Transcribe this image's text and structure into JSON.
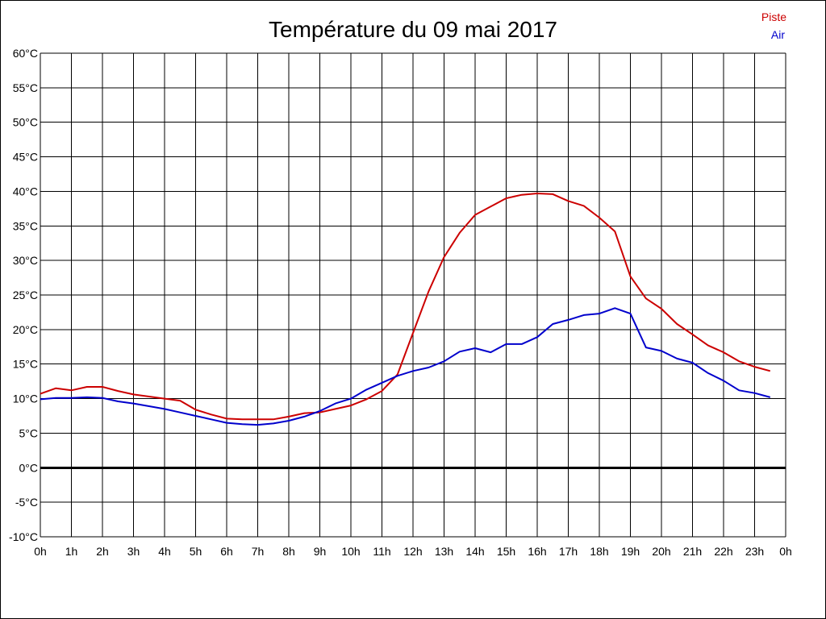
{
  "chart_data": {
    "type": "line",
    "title": "Température du 09 mai 2017",
    "xlabel": "",
    "ylabel": "",
    "x_ticks": [
      "0h",
      "1h",
      "2h",
      "3h",
      "4h",
      "5h",
      "6h",
      "7h",
      "8h",
      "9h",
      "10h",
      "11h",
      "12h",
      "13h",
      "14h",
      "15h",
      "16h",
      "17h",
      "18h",
      "19h",
      "20h",
      "21h",
      "22h",
      "23h",
      "0h"
    ],
    "y_ticks": [
      "60°C",
      "55°C",
      "50°C",
      "45°C",
      "40°C",
      "35°C",
      "30°C",
      "25°C",
      "20°C",
      "15°C",
      "10°C",
      "5°C",
      "0°C",
      "-5°C",
      "-10°C"
    ],
    "xlim": [
      0,
      24
    ],
    "ylim": [
      -10,
      60
    ],
    "grid": true,
    "legend_position": "top-right",
    "series": [
      {
        "name": "Piste",
        "color": "#cc0000",
        "x": [
          0,
          0.5,
          1,
          1.5,
          2,
          2.5,
          3,
          3.5,
          4,
          4.5,
          5,
          5.5,
          6,
          6.5,
          7,
          7.5,
          8,
          8.5,
          9,
          9.5,
          10,
          10.5,
          11,
          11.5,
          12,
          12.5,
          13,
          13.5,
          14,
          14.5,
          15,
          15.5,
          16,
          16.5,
          17,
          17.5,
          18,
          18.5,
          19,
          19.5,
          20,
          20.5,
          21,
          21.5,
          22,
          22.5,
          23,
          23.5
        ],
        "values": [
          10.7,
          11.5,
          11.2,
          11.7,
          11.7,
          11.1,
          10.6,
          10.3,
          10.0,
          9.7,
          8.4,
          7.7,
          7.1,
          7.0,
          7.0,
          7.0,
          7.4,
          7.9,
          8.0,
          8.5,
          9.0,
          9.9,
          11.1,
          13.5,
          19.5,
          25.5,
          30.5,
          34.0,
          36.6,
          37.8,
          39.0,
          39.5,
          39.7,
          39.6,
          38.6,
          37.9,
          36.2,
          34.2,
          27.7,
          24.5,
          23.0,
          20.8,
          19.3,
          17.7,
          16.7,
          15.4,
          14.6,
          14.0
        ]
      },
      {
        "name": "Air",
        "color": "#0000cc",
        "x": [
          0,
          0.5,
          1,
          1.5,
          2,
          2.5,
          3,
          3.5,
          4,
          4.5,
          5,
          5.5,
          6,
          6.5,
          7,
          7.5,
          8,
          8.5,
          9,
          9.5,
          10,
          10.5,
          11,
          11.5,
          12,
          12.5,
          13,
          13.5,
          14,
          14.5,
          15,
          15.5,
          16,
          16.5,
          17,
          17.5,
          18,
          18.5,
          19,
          19.5,
          20,
          20.5,
          21,
          21.5,
          22,
          22.5,
          23,
          23.5
        ],
        "values": [
          9.9,
          10.1,
          10.1,
          10.2,
          10.1,
          9.6,
          9.3,
          8.9,
          8.5,
          8.0,
          7.5,
          7.0,
          6.5,
          6.3,
          6.2,
          6.4,
          6.8,
          7.4,
          8.2,
          9.3,
          10.0,
          11.3,
          12.3,
          13.3,
          14.0,
          14.5,
          15.4,
          16.8,
          17.3,
          16.7,
          17.9,
          17.9,
          18.9,
          20.8,
          21.4,
          22.1,
          22.3,
          23.1,
          22.3,
          17.4,
          16.9,
          15.8,
          15.2,
          13.7,
          12.6,
          11.2,
          10.8,
          10.2
        ]
      }
    ]
  }
}
